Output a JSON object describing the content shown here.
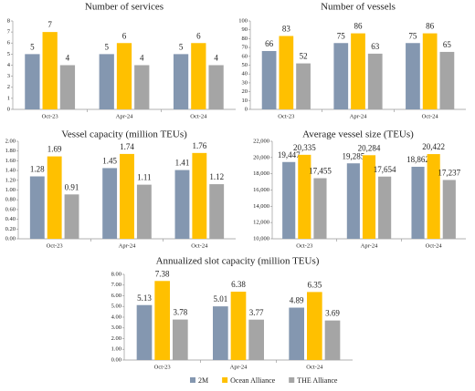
{
  "chart_data": [
    {
      "type": "bar",
      "title": "Number of services",
      "categories": [
        "Oct-23",
        "Apr-24",
        "Oct-24"
      ],
      "series": [
        {
          "color": "#8497b0",
          "values": [
            5,
            5,
            5
          ]
        },
        {
          "color": "#ffc000",
          "values": [
            7,
            6,
            6
          ]
        },
        {
          "color": "#a5a5a5",
          "values": [
            4,
            4,
            4
          ]
        }
      ],
      "ylim": [
        0,
        8
      ],
      "yticks": [
        0,
        1,
        2,
        3,
        4,
        5,
        6,
        7,
        8
      ]
    },
    {
      "type": "bar",
      "title": "Number of vessels",
      "categories": [
        "Oct-23",
        "Apr-24",
        "Oct-24"
      ],
      "series": [
        {
          "color": "#8497b0",
          "values": [
            66,
            75,
            75
          ]
        },
        {
          "color": "#ffc000",
          "values": [
            83,
            86,
            86
          ]
        },
        {
          "color": "#a5a5a5",
          "values": [
            52,
            63,
            65
          ]
        }
      ],
      "ylim": [
        0,
        100
      ],
      "yticks": [
        0,
        10,
        20,
        30,
        40,
        50,
        60,
        70,
        80,
        90,
        100
      ]
    },
    {
      "type": "bar",
      "title": "Vessel capacity (million TEUs)",
      "categories": [
        "Oct-23",
        "Apr-24",
        "Oct-24"
      ],
      "series": [
        {
          "color": "#8497b0",
          "values": [
            1.28,
            1.45,
            1.41
          ]
        },
        {
          "color": "#ffc000",
          "values": [
            1.69,
            1.74,
            1.76
          ]
        },
        {
          "color": "#a5a5a5",
          "values": [
            0.91,
            1.11,
            1.12
          ]
        }
      ],
      "ylim": [
        0,
        2
      ],
      "yticks": [
        {
          "value": 0,
          "label": "0.00"
        },
        {
          "value": 0.2,
          "label": "0.20"
        },
        {
          "value": 0.4,
          "label": "0.40"
        },
        {
          "value": 0.6,
          "label": "0.60"
        },
        {
          "value": 0.8,
          "label": "0.80"
        },
        {
          "value": 1,
          "label": "1.00"
        },
        {
          "value": 1.2,
          "label": "1.20"
        },
        {
          "value": 1.4,
          "label": "1.40"
        },
        {
          "value": 1.6,
          "label": "1.60"
        },
        {
          "value": 1.8,
          "label": "1.80"
        },
        {
          "value": 2,
          "label": "2.00"
        }
      ]
    },
    {
      "type": "bar",
      "title": "Average vessel size (TEUs)",
      "categories": [
        "Oct-23",
        "Apr-24",
        "Oct-24"
      ],
      "series": [
        {
          "color": "#8497b0",
          "values": [
            19447,
            19285,
            18862
          ],
          "value_labels": [
            "19,447",
            "19,285",
            "18,862"
          ]
        },
        {
          "color": "#ffc000",
          "values": [
            20335,
            20284,
            20422
          ],
          "value_labels": [
            "20,335",
            "20,284",
            "20,422"
          ]
        },
        {
          "color": "#a5a5a5",
          "values": [
            17455,
            17654,
            17237
          ],
          "value_labels": [
            "17,455",
            "17,654",
            "17,237"
          ]
        }
      ],
      "ylim": [
        10000,
        22000
      ],
      "yticks": [
        {
          "value": 10000,
          "label": "10,000"
        },
        {
          "value": 12000,
          "label": "12,000"
        },
        {
          "value": 14000,
          "label": "14,000"
        },
        {
          "value": 16000,
          "label": "16,000"
        },
        {
          "value": 18000,
          "label": "18,000"
        },
        {
          "value": 20000,
          "label": "20,000"
        },
        {
          "value": 22000,
          "label": "22,000"
        }
      ]
    },
    {
      "type": "bar",
      "title": "Annualized  slot capacity (million  TEUs)",
      "categories": [
        "Oct-23",
        "Apr-24",
        "Oct-24"
      ],
      "series": [
        {
          "name": "2M",
          "color": "#8497b0",
          "values": [
            5.13,
            5.01,
            4.89
          ]
        },
        {
          "name": "Ocean Alliance",
          "color": "#ffc000",
          "values": [
            7.38,
            6.38,
            6.35
          ]
        },
        {
          "name": "THE Alliance",
          "color": "#a5a5a5",
          "values": [
            3.78,
            3.77,
            3.69
          ]
        }
      ],
      "ylim": [
        0,
        8
      ],
      "yticks": [
        {
          "value": 0,
          "label": "0.00"
        },
        {
          "value": 1,
          "label": "1.00"
        },
        {
          "value": 2,
          "label": "2.00"
        },
        {
          "value": 3,
          "label": "3.00"
        },
        {
          "value": 4,
          "label": "4.00"
        },
        {
          "value": 5,
          "label": "5.00"
        },
        {
          "value": 6,
          "label": "6.00"
        },
        {
          "value": 7,
          "label": "7.00"
        },
        {
          "value": 8,
          "label": "8.00"
        }
      ],
      "legend": "bottom"
    }
  ]
}
